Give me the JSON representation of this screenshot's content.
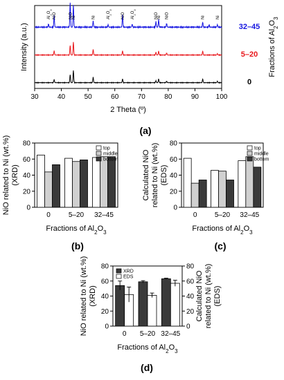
{
  "panel_labels": {
    "a": "(a)",
    "b": "(b)",
    "c": "(c)",
    "d": "(d)"
  },
  "chart_data": [
    {
      "id": "a",
      "type": "line",
      "xlabel": "2 Theta (º)",
      "ylabel": "Intensity (a.u.)",
      "right_label": "Fractions of Al2O3",
      "xlim": [
        30,
        100
      ],
      "x_ticks": [
        "30",
        "40",
        "50",
        "60",
        "70",
        "80",
        "90",
        "100"
      ],
      "series": [
        {
          "name": "0",
          "color": "#000000",
          "peaks": [
            [
              37.3,
              0.25
            ],
            [
              43.3,
              0.65
            ],
            [
              44.5,
              1.0
            ],
            [
              51.9,
              0.45
            ],
            [
              62.9,
              0.3
            ],
            [
              75.4,
              0.15
            ],
            [
              76.4,
              0.3
            ],
            [
              79.4,
              0.12
            ],
            [
              92.9,
              0.3
            ],
            [
              98.4,
              0.12
            ]
          ]
        },
        {
          "name": "5–20",
          "color": "#e8161b",
          "peaks": [
            [
              37.3,
              0.3
            ],
            [
              43.3,
              0.7
            ],
            [
              44.5,
              0.95
            ],
            [
              51.9,
              0.4
            ],
            [
              62.9,
              0.3
            ],
            [
              75.4,
              0.2
            ],
            [
              76.4,
              0.28
            ],
            [
              79.4,
              0.15
            ],
            [
              92.9,
              0.28
            ],
            [
              98.4,
              0.1
            ]
          ]
        },
        {
          "name": "32–45",
          "color": "#1515e0",
          "peaks": [
            [
              35.2,
              0.12
            ],
            [
              37.3,
              0.45
            ],
            [
              43.3,
              1.0
            ],
            [
              44.5,
              0.9
            ],
            [
              51.9,
              0.25
            ],
            [
              57.5,
              0.1
            ],
            [
              62.9,
              0.5
            ],
            [
              66.5,
              0.12
            ],
            [
              75.4,
              0.22
            ],
            [
              76.4,
              0.3
            ],
            [
              79.4,
              0.15
            ],
            [
              92.9,
              0.2
            ],
            [
              95.3,
              0.08
            ],
            [
              98.4,
              0.1
            ]
          ]
        }
      ],
      "peak_labels": [
        {
          "x": 35.2,
          "text": "Al2O3"
        },
        {
          "x": 37.3,
          "text": "NiO"
        },
        {
          "x": 43.3,
          "text": "NiO"
        },
        {
          "x": 44.5,
          "text": "Ni"
        },
        {
          "x": 51.9,
          "text": "Ni"
        },
        {
          "x": 57.5,
          "text": "Al2O3"
        },
        {
          "x": 62.9,
          "text": "NiO"
        },
        {
          "x": 66.5,
          "text": "Al2O3"
        },
        {
          "x": 75.4,
          "text": "NiO"
        },
        {
          "x": 76.4,
          "text": "Ni"
        },
        {
          "x": 79.4,
          "text": "NiO"
        },
        {
          "x": 92.9,
          "text": "Ni"
        },
        {
          "x": 98.4,
          "text": "Ni"
        }
      ]
    },
    {
      "id": "b",
      "type": "bar",
      "ylabel": "NiO related to Ni (wt.%) (XRD)",
      "xlabel": "Fractions of Al2O3",
      "categories": [
        "0",
        "5–20",
        "32–45"
      ],
      "ylim": [
        0,
        80
      ],
      "y_ticks": [
        "0",
        "20",
        "40",
        "60",
        "80"
      ],
      "legend": "top-right",
      "series": [
        {
          "name": "top",
          "fill": "#ffffff",
          "values": [
            65,
            61,
            62
          ]
        },
        {
          "name": "middle",
          "fill": "#d0d0d0",
          "values": [
            44,
            57,
            63
          ]
        },
        {
          "name": "bottom",
          "fill": "#3a3a3a",
          "values": [
            53,
            59,
            63
          ]
        }
      ]
    },
    {
      "id": "c",
      "type": "bar",
      "ylabel": "Calculated NiO related to Ni (wt.%) (EDS)",
      "xlabel": "Fractions of Al2O3",
      "categories": [
        "0",
        "5–20",
        "32–45"
      ],
      "ylim": [
        0,
        80
      ],
      "y_ticks": [
        "0",
        "20",
        "40",
        "60",
        "80"
      ],
      "legend": "top-right",
      "series": [
        {
          "name": "top",
          "fill": "#ffffff",
          "values": [
            61,
            46,
            58
          ]
        },
        {
          "name": "middle",
          "fill": "#d0d0d0",
          "values": [
            30,
            45,
            63
          ]
        },
        {
          "name": "bottom",
          "fill": "#3a3a3a",
          "values": [
            34,
            34,
            50
          ]
        }
      ]
    },
    {
      "id": "d",
      "type": "bar",
      "ylabel": "NiO related to Ni (wt.%) (XRD)",
      "ylabel_right": "Calculated NiO related to Ni (wt.%) (EDS)",
      "xlabel": "Fractions of Al2O3",
      "categories": [
        "0",
        "5–20",
        "32–45"
      ],
      "ylim": [
        0,
        80
      ],
      "y_ticks": [
        "0",
        "20",
        "40",
        "60",
        "80"
      ],
      "legend": "top-left",
      "series": [
        {
          "name": "XRD",
          "fill": "#3a3a3a",
          "values": [
            54,
            59,
            63
          ],
          "errors": [
            6,
            1.5,
            0.8
          ]
        },
        {
          "name": "EDS",
          "fill": "#ffffff",
          "values": [
            42,
            41,
            57
          ],
          "errors": [
            10,
            3,
            4
          ]
        }
      ]
    }
  ]
}
